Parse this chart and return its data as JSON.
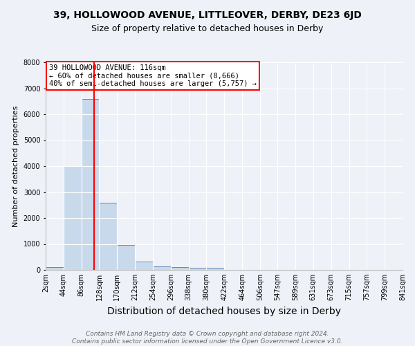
{
  "title": "39, HOLLOWOOD AVENUE, LITTLEOVER, DERBY, DE23 6JD",
  "subtitle": "Size of property relative to detached houses in Derby",
  "xlabel": "Distribution of detached houses by size in Derby",
  "ylabel": "Number of detached properties",
  "bin_edges": [
    2,
    44,
    86,
    128,
    170,
    212,
    254,
    296,
    338,
    380,
    422,
    464,
    506,
    547,
    589,
    631,
    673,
    715,
    757,
    799,
    841
  ],
  "bar_heights": [
    100,
    4000,
    6600,
    2600,
    950,
    320,
    130,
    110,
    80,
    70,
    0,
    0,
    0,
    0,
    0,
    0,
    0,
    0,
    0,
    0
  ],
  "bar_color": "#c9d9ec",
  "bar_edge_color": "#5f8ab5",
  "red_line_x": 116,
  "ylim": [
    0,
    8000
  ],
  "yticks": [
    0,
    1000,
    2000,
    3000,
    4000,
    5000,
    6000,
    7000,
    8000
  ],
  "annotation_text": "39 HOLLOWOOD AVENUE: 116sqm\n← 60% of detached houses are smaller (8,666)\n40% of semi-detached houses are larger (5,757) →",
  "annotation_box_color": "white",
  "annotation_box_edge_color": "red",
  "footer_line1": "Contains HM Land Registry data © Crown copyright and database right 2024.",
  "footer_line2": "Contains public sector information licensed under the Open Government Licence v3.0.",
  "title_fontsize": 10,
  "subtitle_fontsize": 9,
  "xlabel_fontsize": 10,
  "ylabel_fontsize": 8,
  "tick_fontsize": 7,
  "annotation_fontsize": 7.5,
  "footer_fontsize": 6.5,
  "background_color": "#eef2f8"
}
